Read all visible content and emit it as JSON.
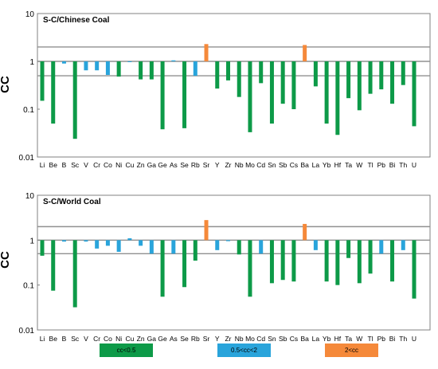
{
  "colors": {
    "low": "#0d9a48",
    "mid": "#29a4db",
    "high": "#f5893a",
    "frame": "#808080"
  },
  "legend": [
    {
      "label": "cc<0.5",
      "color_key": "low"
    },
    {
      "label": "0.5<cc<2",
      "color_key": "mid"
    },
    {
      "label": "2<cc",
      "color_key": "high"
    }
  ],
  "chart_data": [
    {
      "type": "bar",
      "title": "S-C/Chinese Coal",
      "ylabel": "CC",
      "yscale": "log",
      "ylim": [
        0.01,
        10
      ],
      "yticks": [
        "10",
        "1",
        "0.1",
        "0.01"
      ],
      "reference_lines": [
        2,
        1,
        0.5
      ],
      "categories": [
        "Li",
        "Be",
        "B",
        "Sc",
        "V",
        "Cr",
        "Co",
        "Ni",
        "Cu",
        "Zn",
        "Ga",
        "Ge",
        "As",
        "Se",
        "Rb",
        "Sr",
        "Y",
        "Zr",
        "Nb",
        "Mo",
        "Cd",
        "Sn",
        "Sb",
        "Cs",
        "Ba",
        "La",
        "Yb",
        "Hf",
        "Ta",
        "W",
        "Tl",
        "Pb",
        "Bi",
        "Th",
        "U"
      ],
      "values": [
        0.15,
        0.05,
        0.9,
        0.024,
        0.65,
        0.65,
        0.52,
        0.48,
        0.97,
        0.42,
        0.42,
        0.038,
        1.05,
        0.04,
        0.5,
        2.3,
        0.27,
        0.4,
        0.18,
        0.033,
        0.35,
        0.05,
        0.13,
        0.1,
        2.2,
        0.3,
        0.05,
        0.029,
        0.17,
        0.095,
        0.21,
        0.26,
        0.13,
        0.32,
        0.044
      ]
    },
    {
      "type": "bar",
      "title": "S-C/World Coal",
      "ylabel": "CC",
      "yscale": "log",
      "ylim": [
        0.01,
        10
      ],
      "yticks": [
        "10",
        "1",
        "0.1",
        "0.01"
      ],
      "reference_lines": [
        2,
        1,
        0.5
      ],
      "categories": [
        "Li",
        "Be",
        "B",
        "Sc",
        "V",
        "Cr",
        "Co",
        "Ni",
        "Cu",
        "Zn",
        "Ga",
        "Ge",
        "As",
        "Se",
        "Rb",
        "Sr",
        "Y",
        "Zr",
        "Nb",
        "Mo",
        "Cd",
        "Sn",
        "Sb",
        "Cs",
        "Ba",
        "La",
        "Yb",
        "Hf",
        "Ta",
        "W",
        "Tl",
        "Pb",
        "Bi",
        "Th",
        "U"
      ],
      "values": [
        0.45,
        0.075,
        0.93,
        0.032,
        0.93,
        0.65,
        0.75,
        0.55,
        1.1,
        0.75,
        0.5,
        0.055,
        0.5,
        0.09,
        0.35,
        2.8,
        0.6,
        0.95,
        0.48,
        0.055,
        0.5,
        0.11,
        0.13,
        0.12,
        2.3,
        0.6,
        0.12,
        0.1,
        0.4,
        0.11,
        0.18,
        0.5,
        0.12,
        0.6,
        0.05
      ]
    }
  ]
}
